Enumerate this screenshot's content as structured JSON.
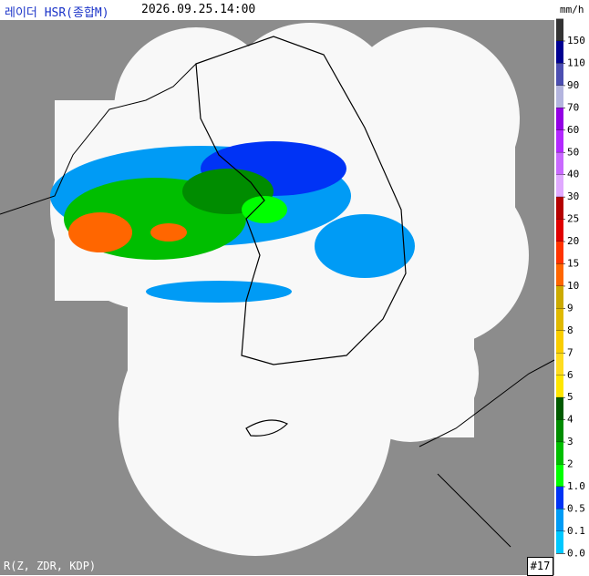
{
  "header": {
    "title": "레이더 HSR(종합M)",
    "timestamp": "2026.09.25.14:00",
    "unit": "mm/h"
  },
  "legend": [
    {
      "label": "150",
      "color": "#333333"
    },
    {
      "label": "110",
      "color": "#000090"
    },
    {
      "label": "90",
      "color": "#4c4eb1"
    },
    {
      "label": "70",
      "color": "#b3b4de"
    },
    {
      "label": "60",
      "color": "#9300e4"
    },
    {
      "label": "50",
      "color": "#b329ff"
    },
    {
      "label": "40",
      "color": "#c969ff"
    },
    {
      "label": "30",
      "color": "#e0a9ff"
    },
    {
      "label": "25",
      "color": "#b40000"
    },
    {
      "label": "20",
      "color": "#e00000"
    },
    {
      "label": "15",
      "color": "#ff3300"
    },
    {
      "label": "10",
      "color": "#ff6600"
    },
    {
      "label": "9",
      "color": "#ccaa00"
    },
    {
      "label": "8",
      "color": "#e0b900"
    },
    {
      "label": "7",
      "color": "#f9cd00"
    },
    {
      "label": "6",
      "color": "#ffdc1f"
    },
    {
      "label": "5",
      "color": "#ffe600"
    },
    {
      "label": "4",
      "color": "#005a00"
    },
    {
      "label": "3",
      "color": "#008c00"
    },
    {
      "label": "2",
      "color": "#00be00"
    },
    {
      "label": "1.0",
      "color": "#00ff00"
    },
    {
      "label": "0.5",
      "color": "#0033f5"
    },
    {
      "label": "0.1",
      "color": "#009bf5"
    },
    {
      "label": "0.0",
      "color": "#00c8ff"
    }
  ],
  "footer": {
    "method": "R(Z, ZDR, KDP)",
    "site_count": "#17"
  }
}
